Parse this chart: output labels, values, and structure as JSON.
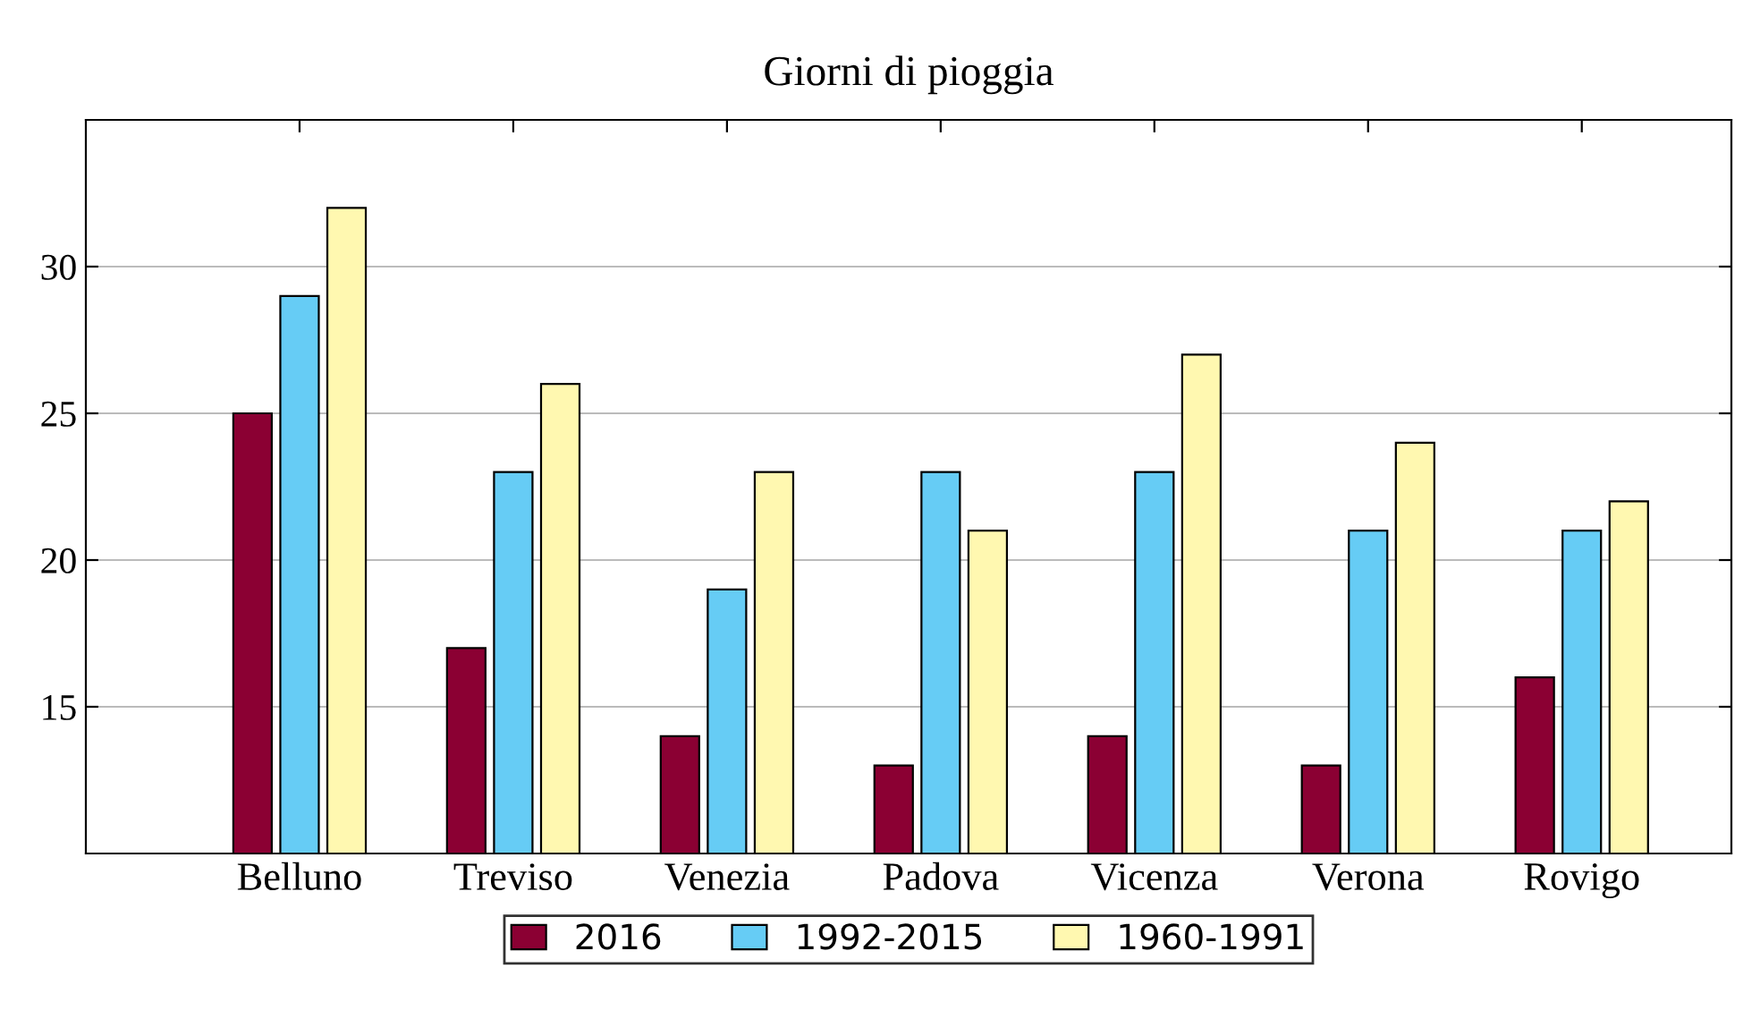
{
  "chart_data": {
    "type": "bar",
    "title": "Giorni di pioggia",
    "categories": [
      "Belluno",
      "Treviso",
      "Venezia",
      "Padova",
      "Vicenza",
      "Verona",
      "Rovigo"
    ],
    "series": [
      {
        "name": "2016",
        "color": "#8b0033",
        "values": [
          25,
          17,
          14,
          13,
          14,
          13,
          16
        ]
      },
      {
        "name": "1992-2015",
        "color": "#66ccf5",
        "values": [
          29,
          23,
          19,
          23,
          23,
          21,
          21
        ]
      },
      {
        "name": "1960-1991",
        "color": "#fff8b0",
        "values": [
          32,
          26,
          23,
          21,
          27,
          24,
          22
        ]
      }
    ],
    "ylim": [
      10,
      35
    ],
    "yticks": [
      15,
      20,
      25,
      30
    ],
    "grid": "y",
    "legend": "bottom"
  }
}
